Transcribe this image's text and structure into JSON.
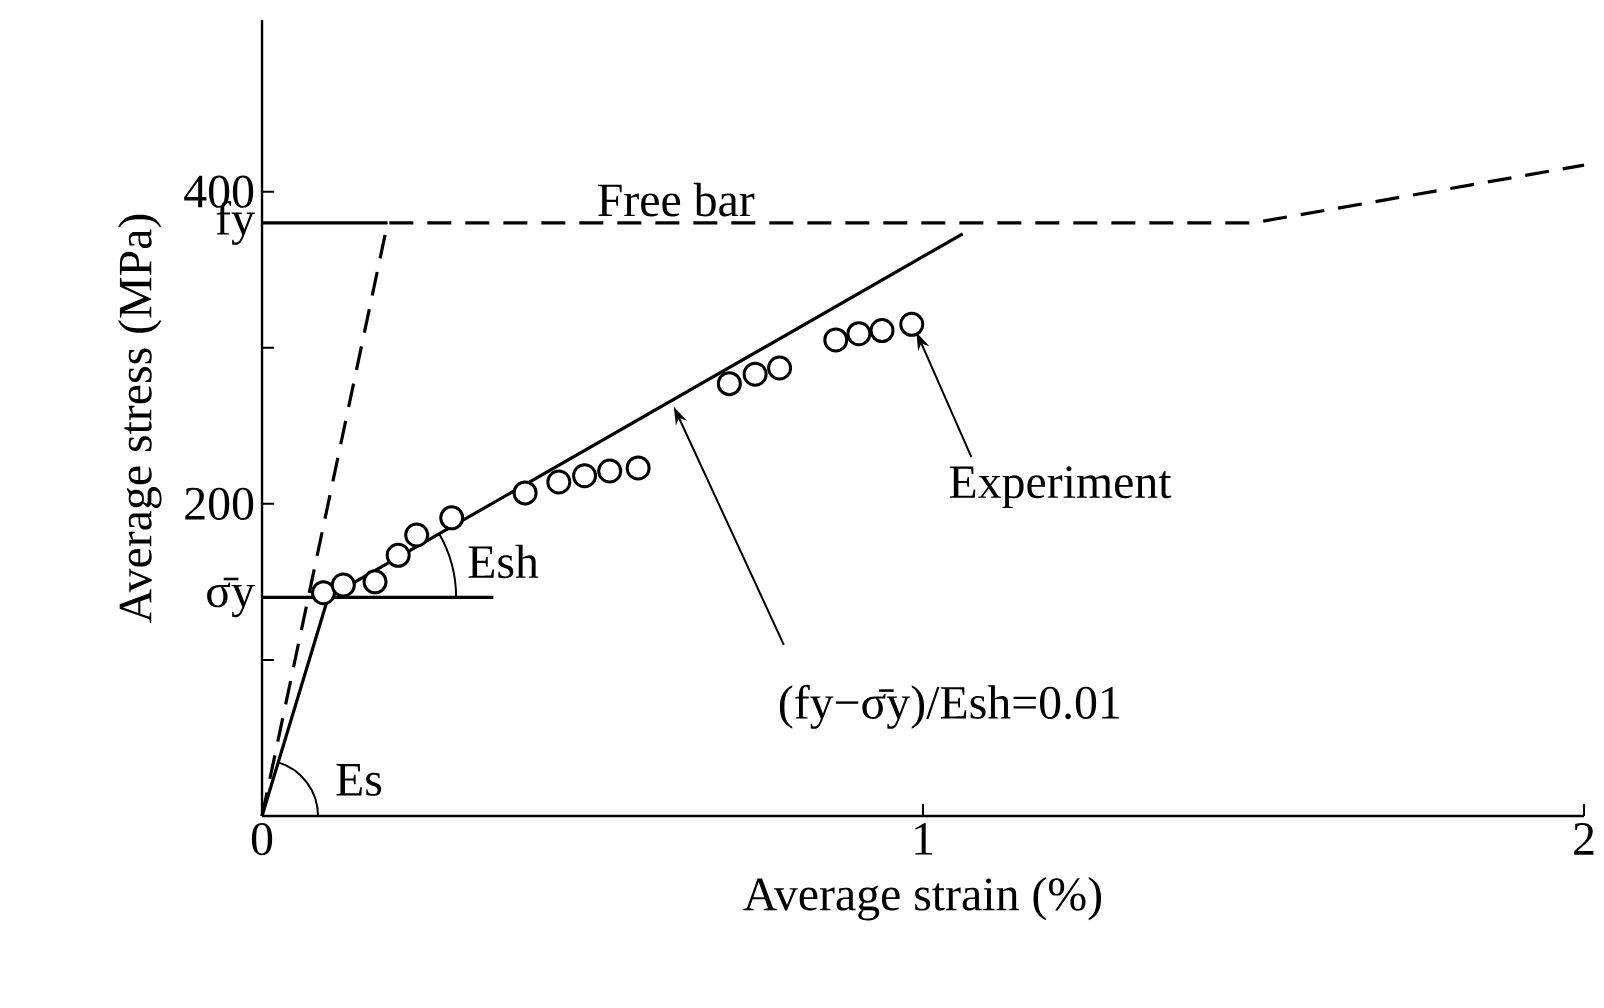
{
  "chart_data": {
    "type": "line",
    "xlabel": "Average strain (%)",
    "ylabel": "Average stress (MPa)",
    "xlim": [
      0,
      2
    ],
    "ylim": [
      0,
      510
    ],
    "xticks": [
      0,
      1,
      2
    ],
    "yticks": [
      {
        "value": 100,
        "label": null
      },
      {
        "value": 140,
        "label": "σ̄y"
      },
      200,
      {
        "value": 300,
        "label": null
      },
      {
        "value": 380,
        "label": "fy"
      },
      400
    ],
    "grid": false,
    "series": [
      {
        "name": "Free bar",
        "type": "line",
        "line_style": "dashed",
        "color": "#000000",
        "x": [
          0,
          0.19,
          1.5,
          2
        ],
        "values": [
          0,
          380,
          380,
          417
        ]
      },
      {
        "line_style": "solid",
        "color": "#000000",
        "x": [
          0,
          0.1,
          1.06
        ],
        "values": [
          0,
          140,
          373
        ]
      },
      {
        "type": "scatter",
        "marker": "circle",
        "color": "#000000",
        "x": [
          0.093,
          0.123,
          0.171,
          0.206,
          0.234,
          0.287,
          0.398,
          0.449,
          0.488,
          0.526,
          0.569,
          0.707,
          0.746,
          0.783,
          0.868,
          0.903,
          0.938,
          0.983
        ],
        "values": [
          143,
          148,
          150,
          167,
          180,
          191,
          207,
          214,
          218,
          221,
          223,
          277,
          283,
          287,
          305,
          309,
          311,
          315
        ]
      },
      {
        "line_style": "solid",
        "color": "#000000",
        "x": [
          0,
          0.35
        ],
        "values": [
          140,
          140
        ]
      },
      {
        "line_style": "solid",
        "color": "#000000",
        "x": [
          0,
          0.19
        ],
        "values": [
          380,
          380
        ]
      }
    ],
    "annotations": [
      {
        "text": "Es",
        "x": 0,
        "y": 0
      },
      {
        "text": "Esh",
        "x": 0.1,
        "y": 140
      },
      {
        "text": "(fy−σ̄y)/Esh=0.01",
        "x": 0.62,
        "y": 266
      },
      {
        "text": "Experiment",
        "x": 0.99,
        "y": 310
      }
    ]
  }
}
